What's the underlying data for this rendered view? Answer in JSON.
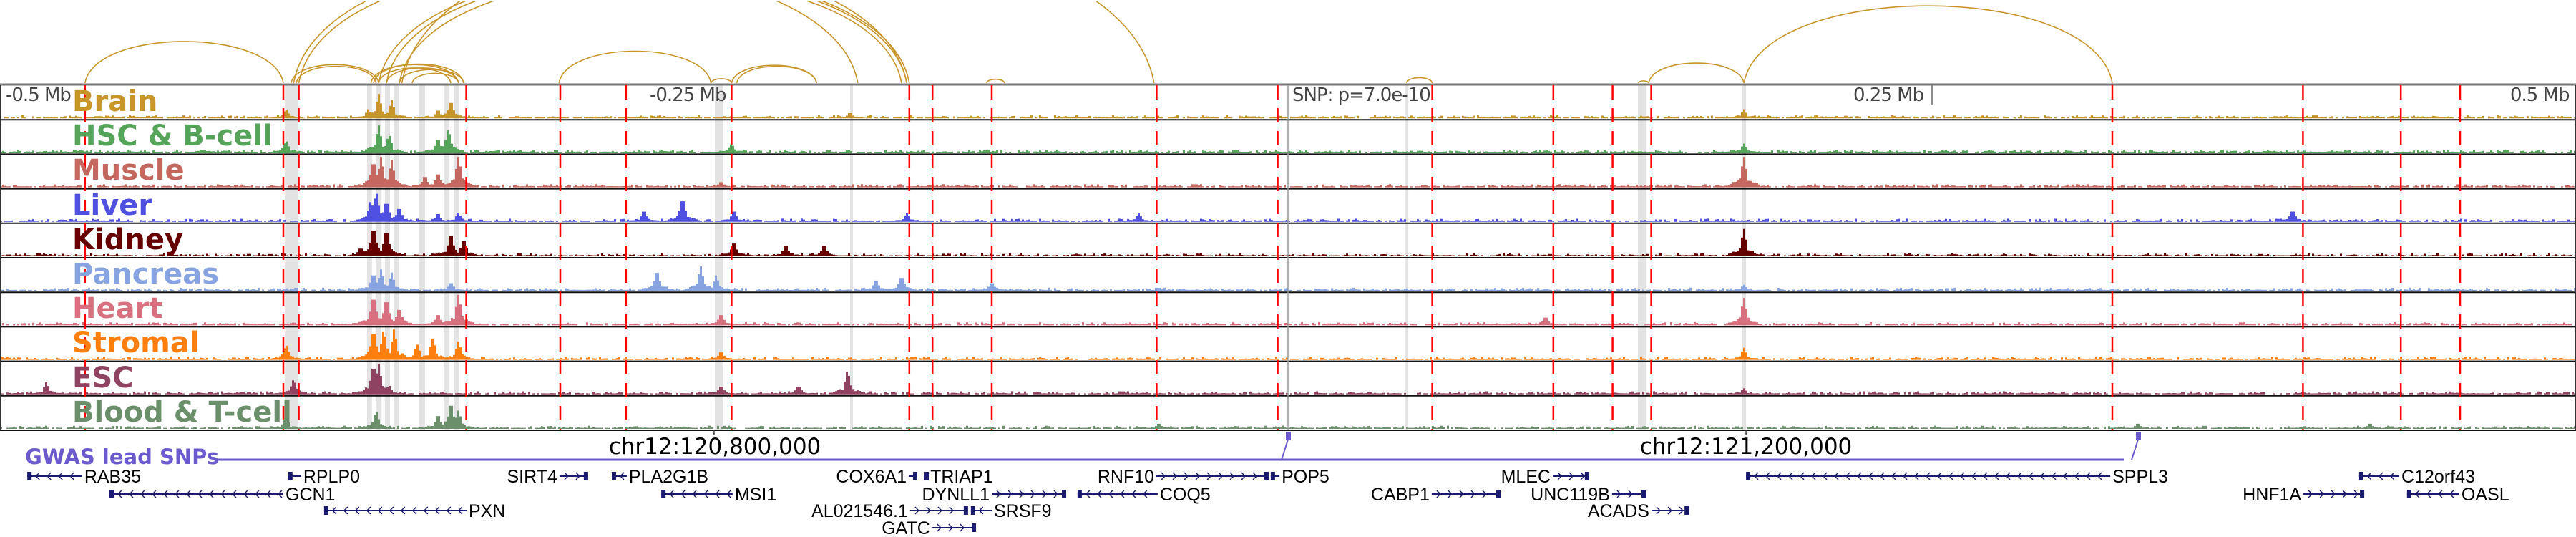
{
  "axis": {
    "left": "-0.5 Mb",
    "mid_left": "-0.25 Mb",
    "snp": "SNP: p=7.0e-10",
    "mid_right": "0.25 Mb",
    "right": "0.5 Mb"
  },
  "colors": {
    "arc": "#c8952a",
    "dashed_line": "#ff0000",
    "highlight": "#e3e3e3",
    "gene": "#1a1a6e",
    "gwas": "#6a5acd"
  },
  "tracks": [
    {
      "name": "Brain",
      "color": "#c8952a",
      "peaks": [
        [
          -357,
          0.3
        ],
        [
          -353,
          0.8
        ],
        [
          -348,
          0.6
        ],
        [
          -330,
          0.3
        ],
        [
          -325,
          0.6
        ],
        [
          -389,
          0.3
        ],
        [
          177,
          0.3
        ],
        [
          -170,
          0.2
        ]
      ]
    },
    {
      "name": "HSC & B-cell",
      "color": "#56a45a",
      "peaks": [
        [
          -353,
          0.9
        ],
        [
          -349,
          0.6
        ],
        [
          -330,
          0.5
        ],
        [
          -326,
          0.8
        ],
        [
          -389,
          0.4
        ],
        [
          -216,
          0.3
        ],
        [
          177,
          0.3
        ]
      ]
    },
    {
      "name": "Muscle",
      "color": "#c4675f",
      "peaks": [
        [
          -355,
          0.9
        ],
        [
          -352,
          1.0
        ],
        [
          -348,
          0.9
        ],
        [
          -335,
          0.4
        ],
        [
          -330,
          0.5
        ],
        [
          -322,
          1.0
        ],
        [
          177,
          1.0
        ],
        [
          -220,
          0.2
        ]
      ]
    },
    {
      "name": "Liver",
      "color": "#5050e0",
      "peaks": [
        [
          -356,
          0.7
        ],
        [
          -354,
          1.0
        ],
        [
          -350,
          0.7
        ],
        [
          -345,
          0.5
        ],
        [
          -330,
          0.3
        ],
        [
          -322,
          0.3
        ],
        [
          -250,
          0.4
        ],
        [
          -235,
          0.8
        ],
        [
          -215,
          0.4
        ],
        [
          -148,
          0.3
        ],
        [
          -58,
          0.3
        ],
        [
          390,
          0.4
        ]
      ]
    },
    {
      "name": "Kidney",
      "color": "#660000",
      "peaks": [
        [
          -355,
          1.0
        ],
        [
          -350,
          0.9
        ],
        [
          -325,
          0.8
        ],
        [
          -320,
          0.6
        ],
        [
          -215,
          0.5
        ],
        [
          -195,
          0.4
        ],
        [
          -180,
          0.4
        ],
        [
          177,
          0.9
        ],
        [
          -360,
          0.3
        ]
      ]
    },
    {
      "name": "Pancreas",
      "color": "#88a4e0",
      "peaks": [
        [
          -355,
          0.6
        ],
        [
          -352,
          0.7
        ],
        [
          -348,
          0.6
        ],
        [
          -325,
          0.3
        ],
        [
          -245,
          0.7
        ],
        [
          -228,
          0.8
        ],
        [
          -222,
          0.5
        ],
        [
          -160,
          0.4
        ],
        [
          -150,
          0.5
        ],
        [
          -115,
          0.3
        ],
        [
          177,
          0.2
        ]
      ]
    },
    {
      "name": "Heart",
      "color": "#d87080",
      "peaks": [
        [
          -355,
          1.0
        ],
        [
          -350,
          0.9
        ],
        [
          -345,
          0.6
        ],
        [
          -330,
          0.4
        ],
        [
          -322,
          1.0
        ],
        [
          177,
          0.9
        ],
        [
          -220,
          0.4
        ],
        [
          100,
          0.3
        ]
      ]
    },
    {
      "name": "Stromal",
      "color": "#ff7f0e",
      "peaks": [
        [
          -355,
          1.0
        ],
        [
          -351,
          1.0
        ],
        [
          -347,
          1.0
        ],
        [
          -338,
          0.5
        ],
        [
          -332,
          0.7
        ],
        [
          -322,
          0.6
        ],
        [
          -389,
          0.5
        ],
        [
          -220,
          0.3
        ],
        [
          177,
          0.4
        ]
      ]
    },
    {
      "name": "ESC",
      "color": "#8e4460",
      "peaks": [
        [
          -355,
          1.0
        ],
        [
          -353,
          1.0
        ],
        [
          -349,
          0.3
        ],
        [
          -386,
          0.5
        ],
        [
          -171,
          0.8
        ],
        [
          -220,
          0.3
        ],
        [
          -190,
          0.3
        ],
        [
          177,
          0.2
        ],
        [
          -482,
          0.4
        ]
      ]
    },
    {
      "name": "Blood & T-cell",
      "color": "#6a8f6a",
      "peaks": [
        [
          -354,
          0.6
        ],
        [
          -325,
          0.9
        ],
        [
          -322,
          0.6
        ],
        [
          -330,
          0.5
        ],
        [
          -389,
          0.4
        ],
        [
          -50,
          0.2
        ],
        [
          330,
          0.2
        ],
        [
          420,
          0.2
        ]
      ]
    }
  ],
  "dashed_lines_kb": [
    -467,
    -390,
    -384,
    -319,
    -282.5,
    -257,
    -216,
    -147,
    -138,
    -115,
    -51,
    -4,
    56,
    103,
    126,
    141,
    320,
    394,
    432,
    455
  ],
  "highlights_kb": [
    [
      -389.4,
      -384.4
    ],
    [
      -357.5,
      -355.6
    ],
    [
      -354.2,
      -351.9
    ],
    [
      -350.6,
      -348.6
    ],
    [
      -347.2,
      -345
    ],
    [
      -337.2,
      -335
    ],
    [
      -327.8,
      -325.6
    ],
    [
      -323.9,
      -321.9
    ],
    [
      -222.5,
      -219.4
    ],
    [
      -170,
      -168.9
    ],
    [
      45.6,
      46.7
    ],
    [
      135.8,
      138.9
    ],
    [
      176.1,
      177.8
    ]
  ],
  "arcs_kb": [
    [
      -467,
      -390
    ],
    [
      -387,
      -353
    ],
    [
      -385,
      -354
    ],
    [
      -355,
      -320
    ],
    [
      -353,
      -325
    ],
    [
      -350,
      -322
    ],
    [
      -345,
      -320
    ],
    [
      -340,
      -322
    ],
    [
      -356,
      -322
    ],
    [
      -386,
      -148
    ],
    [
      -384,
      -167
    ],
    [
      -353,
      -147
    ],
    [
      -350,
      -148
    ],
    [
      -345,
      -150
    ],
    [
      -344,
      -52
    ],
    [
      -283,
      -224
    ],
    [
      -224,
      -216
    ],
    [
      -216,
      -183
    ],
    [
      -214,
      -183
    ],
    [
      -117,
      -110
    ],
    [
      46,
      56
    ],
    [
      136,
      140
    ],
    [
      140,
      177
    ],
    [
      177,
      320
    ]
  ],
  "gwas": {
    "label": "GWAS lead SNPs",
    "snps_kb": [
      0,
      330
    ]
  },
  "coordinates": [
    {
      "label": "chr12:120,800,000",
      "kb": -222.8
    },
    {
      "label": "chr12:121,200,000",
      "kb": 177.8
    }
  ],
  "genes": [
    {
      "name": "RAB35",
      "start": -489.4,
      "end": -468.1,
      "strand": "-",
      "row": 0,
      "label_side": "right"
    },
    {
      "name": "RPLP0",
      "start": -388.1,
      "end": -383.1,
      "strand": "-",
      "row": 0,
      "label_side": "right"
    },
    {
      "name": "SIRT4",
      "start": -282.8,
      "end": -271.7,
      "strand": "+",
      "row": 0,
      "label_side": "left"
    },
    {
      "name": "PLA2G1B",
      "start": -262.5,
      "end": -256.7,
      "strand": "-",
      "row": 0,
      "label_side": "right"
    },
    {
      "name": "GCN1",
      "start": -457.5,
      "end": -390,
      "strand": "-",
      "row": 1,
      "label_side": "right"
    },
    {
      "name": "MSI1",
      "start": -243.3,
      "end": -215.6,
      "strand": "-",
      "row": 1,
      "label_side": "right"
    },
    {
      "name": "PXN",
      "start": -374.2,
      "end": -318.9,
      "strand": "-",
      "row": 2,
      "label_side": "right"
    },
    {
      "name": "COX6A1",
      "start": -147.2,
      "end": -143.9,
      "strand": "+",
      "row": 0,
      "label_side": "left"
    },
    {
      "name": "TRIAP1",
      "start": -141.1,
      "end": -139.7,
      "strand": "-",
      "row": 0,
      "label_side": "right"
    },
    {
      "name": "RNF10",
      "start": -51.1,
      "end": -7.5,
      "strand": "+",
      "row": 0,
      "label_side": "left"
    },
    {
      "name": "POP5",
      "start": -6.7,
      "end": -3.3,
      "strand": "-",
      "row": 0,
      "label_side": "right"
    },
    {
      "name": "MLEC",
      "start": 102.8,
      "end": 116.9,
      "strand": "+",
      "row": 0,
      "label_side": "left"
    },
    {
      "name": "DYNLL1",
      "start": -115,
      "end": -86.1,
      "strand": "+",
      "row": 1,
      "label_side": "left"
    },
    {
      "name": "COQ5",
      "start": -81.7,
      "end": -50.6,
      "strand": "-",
      "row": 1,
      "label_side": "right"
    },
    {
      "name": "CABP1",
      "start": 55.8,
      "end": 82.5,
      "strand": "+",
      "row": 1,
      "label_side": "left"
    },
    {
      "name": "UNC119B",
      "start": 125.8,
      "end": 138.9,
      "strand": "+",
      "row": 1,
      "label_side": "left"
    },
    {
      "name": "AL021546.1",
      "start": -146.7,
      "end": -124.2,
      "strand": "+",
      "row": 2,
      "label_side": "left"
    },
    {
      "name": "SRSF9",
      "start": -123.1,
      "end": -115,
      "strand": "-",
      "row": 2,
      "label_side": "right"
    },
    {
      "name": "ACADS",
      "start": 141.1,
      "end": 155.6,
      "strand": "+",
      "row": 2,
      "label_side": "left"
    },
    {
      "name": "GATC",
      "start": -138.1,
      "end": -121.1,
      "strand": "+",
      "row": 3,
      "label_side": "left"
    },
    {
      "name": "SPPL3",
      "start": 177.8,
      "end": 319.2,
      "strand": "-",
      "row": 0,
      "label_side": "right"
    },
    {
      "name": "C12orf43",
      "start": 415.8,
      "end": 431.4,
      "strand": "-",
      "row": 0,
      "label_side": "right"
    },
    {
      "name": "HNF1A",
      "start": 394.2,
      "end": 417.8,
      "strand": "+",
      "row": 1,
      "label_side": "left"
    },
    {
      "name": "OASL",
      "start": 434.4,
      "end": 454.7,
      "strand": "-",
      "row": 1,
      "label_side": "right"
    }
  ]
}
